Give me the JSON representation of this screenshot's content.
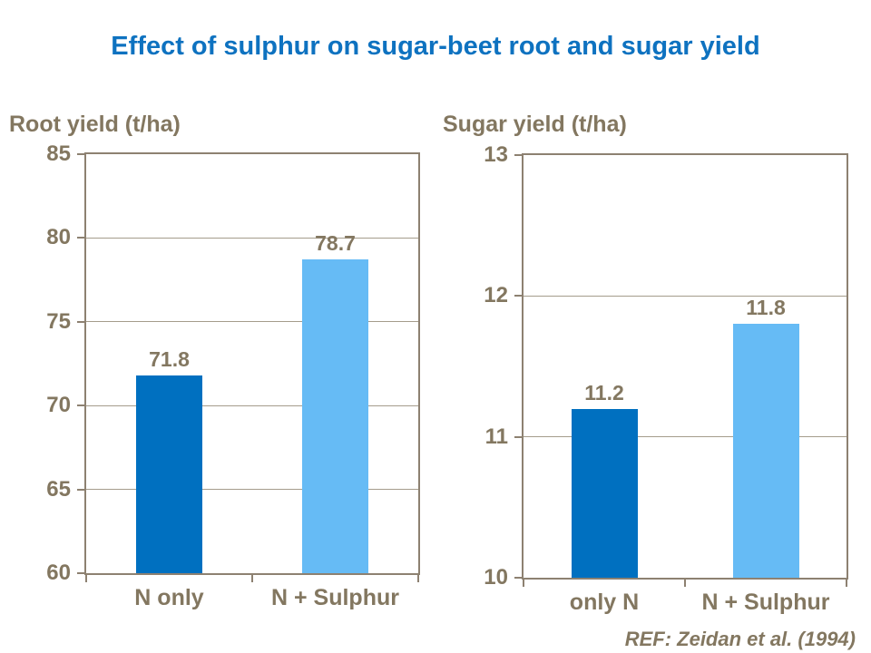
{
  "page": {
    "title": "Effect of sulphur on sugar-beet root and sugar yield",
    "ref": "REF: Zeidan et al. (1994)"
  },
  "colors": {
    "background": "#FFFFFF",
    "title_blue": "#0E72C0",
    "label_brown": "#837760",
    "axis_line_brown": "#8D8171",
    "gridline_brown": "#A59C8C",
    "bar_dark_blue": "#0070C0",
    "bar_light_blue": "#66BBF5"
  },
  "chart_data": [
    {
      "type": "bar",
      "title": "Root yield (t/ha)",
      "categories": [
        "N only",
        "N + Sulphur"
      ],
      "values": [
        71.8,
        78.7
      ],
      "data_labels": [
        "71.8",
        "78.7"
      ],
      "bar_colors": [
        "#0070C0",
        "#66BBF5"
      ],
      "ylim": [
        60,
        85
      ],
      "yticks": [
        85,
        80,
        75,
        70,
        65,
        60
      ],
      "xlabel": "",
      "ylabel": "Root yield (t/ha)",
      "grid": true,
      "legend": "none"
    },
    {
      "type": "bar",
      "title": "Sugar yield (t/ha)",
      "categories": [
        "only N",
        "N + Sulphur"
      ],
      "values": [
        11.2,
        11.8
      ],
      "data_labels": [
        "11.2",
        "11.8"
      ],
      "bar_colors": [
        "#0070C0",
        "#66BBF5"
      ],
      "ylim": [
        10,
        13
      ],
      "yticks": [
        13,
        12,
        11,
        10
      ],
      "xlabel": "",
      "ylabel": "Sugar yield (t/ha)",
      "grid": true,
      "legend": "none"
    }
  ]
}
